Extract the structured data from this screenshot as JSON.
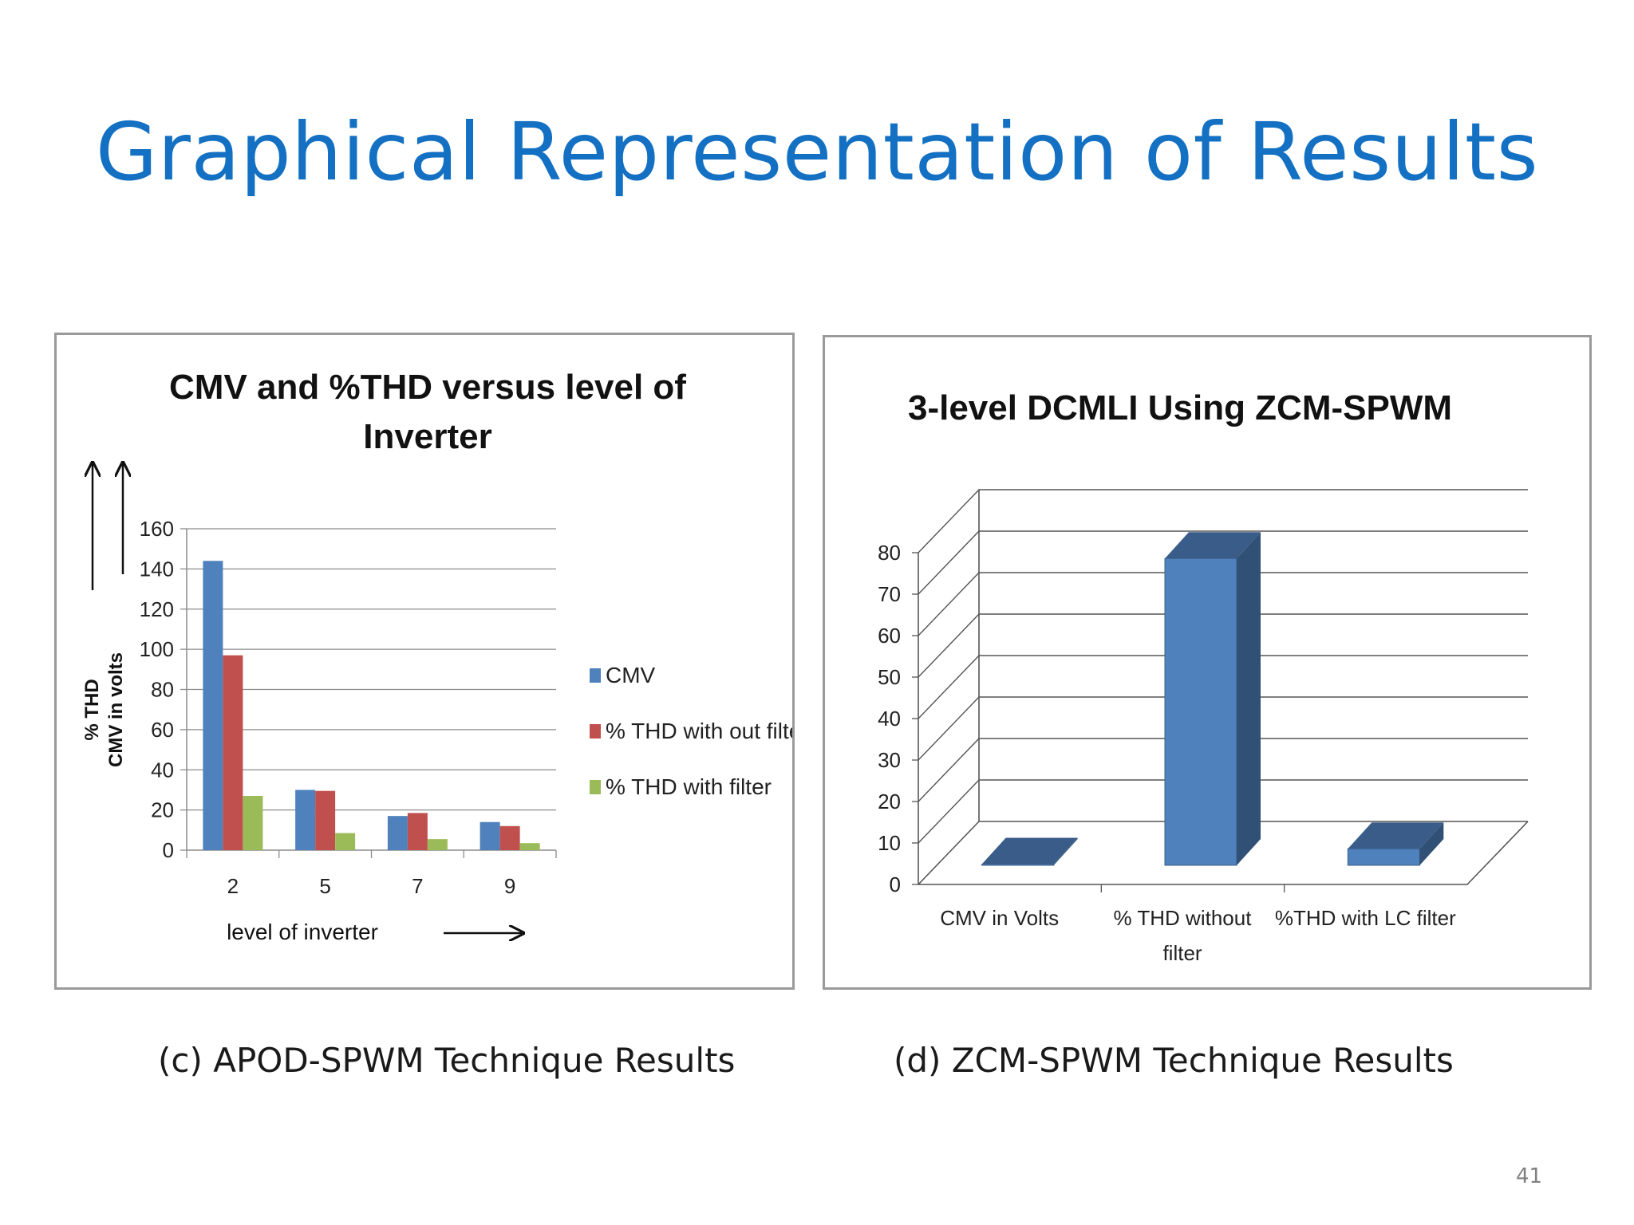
{
  "slide": {
    "title": "Graphical Representation of Results",
    "caption_c": "(c) APOD-SPWM Technique Results",
    "caption_d": "(d) ZCM-SPWM Technique Results",
    "page_number": "41"
  },
  "chart_data": [
    {
      "type": "bar",
      "title_line1": "CMV and %THD versus level of",
      "title_line2": "Inverter",
      "ylabel_line1": "% THD",
      "ylabel_line2": "CMV in volts",
      "xlabel": "level of inverter",
      "categories": [
        "2",
        "5",
        "7",
        "9"
      ],
      "ylim": [
        0,
        160
      ],
      "yticks": [
        0,
        20,
        40,
        60,
        80,
        100,
        120,
        140,
        160
      ],
      "grid": true,
      "legend": "right",
      "series": [
        {
          "name": "CMV",
          "color": "#4f81bd",
          "values": [
            144,
            30,
            17,
            14
          ]
        },
        {
          "name": "% THD with out filter",
          "color": "#c0504d",
          "values": [
            97,
            29.5,
            18.5,
            12
          ]
        },
        {
          "name": "% THD with filter",
          "color": "#9bbb59",
          "values": [
            27,
            8.5,
            5.5,
            3.5
          ]
        }
      ]
    },
    {
      "type": "bar",
      "style": "3d",
      "title": "3-level DCMLI Using ZCM-SPWM",
      "categories": [
        "CMV in Volts",
        "% THD without filter",
        "%THD with LC filter"
      ],
      "category_lines": [
        [
          "CMV in Volts"
        ],
        [
          "% THD without",
          "filter"
        ],
        [
          "%THD with LC filter"
        ]
      ],
      "ylim": [
        0,
        80
      ],
      "yticks": [
        0,
        10,
        20,
        30,
        40,
        50,
        60,
        70,
        80
      ],
      "grid": true,
      "legend": "none",
      "series": [
        {
          "color": "#4f81bd",
          "values": [
            0.3,
            74,
            4
          ]
        }
      ]
    }
  ]
}
